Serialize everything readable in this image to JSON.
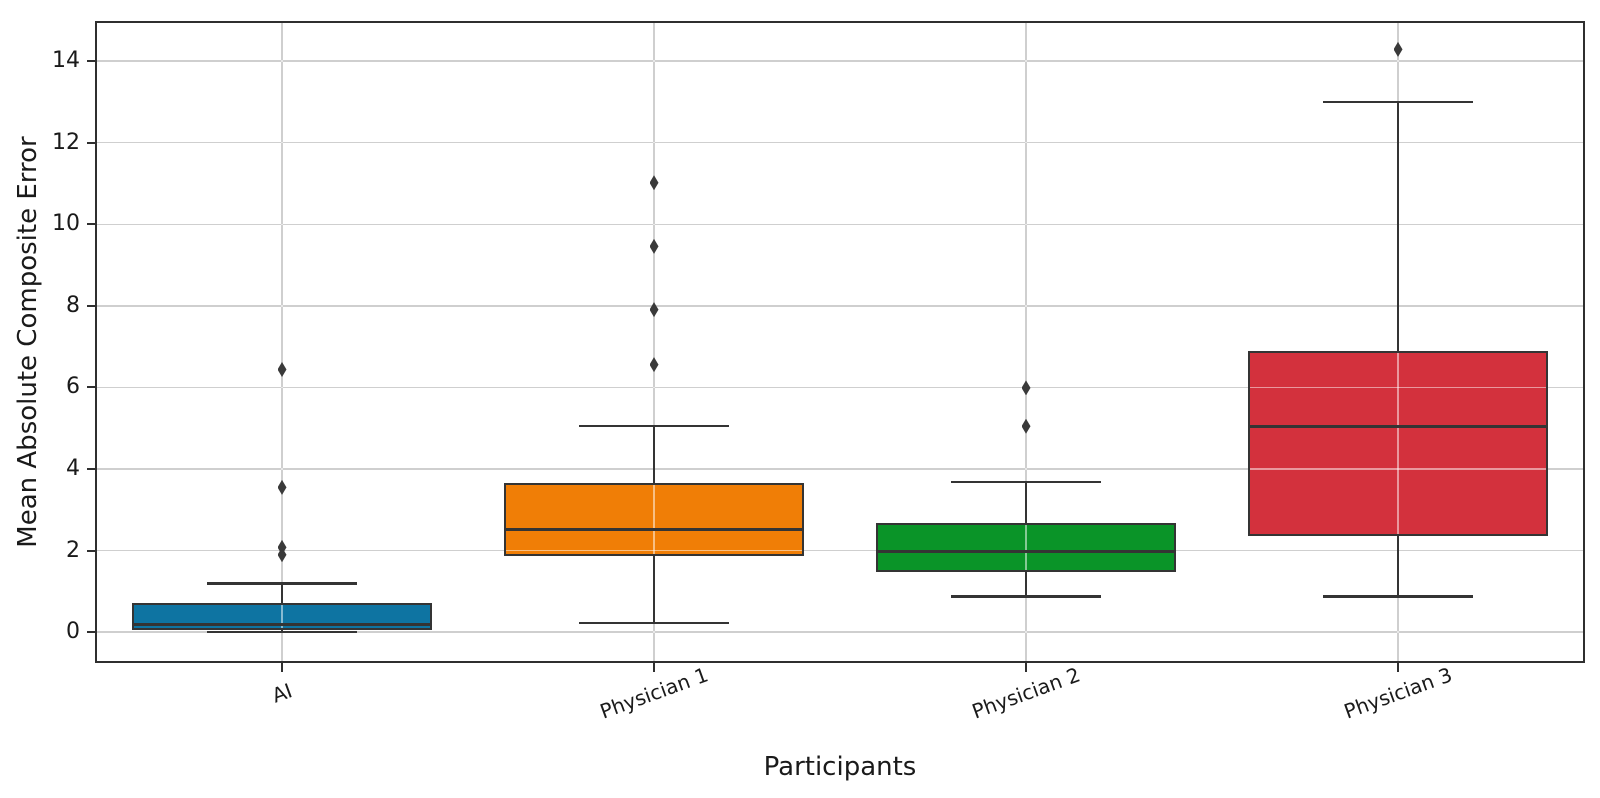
{
  "chart_data": {
    "type": "box",
    "title": "",
    "xlabel": "Participants",
    "ylabel": "Mean Absolute Composite Error",
    "categories": [
      "AI",
      "Physician 1",
      "Physician 2",
      "Physician 3"
    ],
    "series": [
      {
        "name": "AI",
        "color": "#0e74a2",
        "whislo": 0.0,
        "q1": 0.05,
        "med": 0.2,
        "q3": 0.72,
        "whishi": 1.19,
        "fliers": [
          1.9,
          2.08,
          3.55,
          6.44
        ]
      },
      {
        "name": "Physician 1",
        "color": "#f07e06",
        "whislo": 0.23,
        "q1": 1.88,
        "med": 2.52,
        "q3": 3.66,
        "whishi": 5.05,
        "fliers": [
          6.56,
          7.91,
          9.46,
          11.02
        ]
      },
      {
        "name": "Physician 2",
        "color": "#0a9428",
        "whislo": 0.88,
        "q1": 1.47,
        "med": 1.97,
        "q3": 2.68,
        "whishi": 3.68,
        "fliers": [
          5.05,
          5.99
        ]
      },
      {
        "name": "Physician 3",
        "color": "#d3313d",
        "whislo": 0.88,
        "q1": 2.37,
        "med": 5.05,
        "q3": 6.89,
        "whishi": 13.0,
        "fliers": [
          14.29
        ]
      }
    ],
    "yticks": [
      0,
      2,
      4,
      6,
      8,
      10,
      12,
      14
    ],
    "ylim": [
      -0.73,
      14.96
    ],
    "grid": true,
    "legend": false,
    "colors": {
      "box_edge": "#343434",
      "median": "#343434",
      "whisker": "#343434",
      "flier": "#3a3a3a",
      "gridline": "#9e9e9e",
      "spine": "#2f2f2f",
      "text": "#1a1a1a",
      "background": "#ffffff"
    }
  }
}
